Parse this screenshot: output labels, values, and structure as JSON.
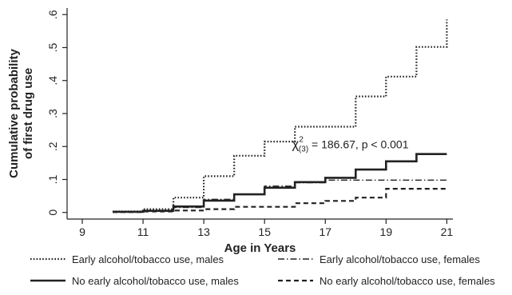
{
  "chart_data": {
    "type": "line",
    "step": true,
    "xlabel": "Age in Years",
    "ylabel": [
      "Cumulative probability",
      "of first drug use"
    ],
    "xlim": [
      8.5,
      21.2
    ],
    "ylim": [
      -0.02,
      0.62
    ],
    "xticks": [
      9,
      11,
      13,
      15,
      17,
      19,
      21
    ],
    "xtick_labels": [
      "9",
      "11",
      "13",
      "15",
      "17",
      "19",
      "21"
    ],
    "yticks": [
      0,
      0.1,
      0.2,
      0.3,
      0.4,
      0.5,
      0.6
    ],
    "ytick_labels": [
      "0",
      ".1",
      ".2",
      ".3",
      ".4",
      ".5",
      ".6"
    ],
    "grid": false,
    "legend_position": "bottom",
    "annotation": {
      "chi": "χ",
      "superscript": "2",
      "subscript": "(3)",
      "rest": " = 186.67, p < 0.001",
      "x": 15.9,
      "y": 0.195
    },
    "series": [
      {
        "name": "Early alcohol/tobacco use, males",
        "style": "dotted",
        "color": "#222222",
        "x": [
          10,
          11,
          12,
          13,
          14,
          15,
          16,
          17,
          18,
          19,
          20,
          21
        ],
        "y": [
          0.003,
          0.01,
          0.045,
          0.11,
          0.172,
          0.215,
          0.26,
          0.26,
          0.352,
          0.412,
          0.502,
          0.585
        ]
      },
      {
        "name": "Early alcohol/tobacco use, females",
        "style": "dashdot",
        "color": "#222222",
        "x": [
          10,
          11,
          12,
          13,
          14,
          15,
          16,
          17,
          18,
          19,
          20,
          21
        ],
        "y": [
          0.002,
          0.005,
          0.015,
          0.04,
          0.055,
          0.08,
          0.09,
          0.098,
          0.098,
          0.098,
          0.098,
          0.098
        ]
      },
      {
        "name": "No early alcohol/tobacco use, males",
        "style": "solid",
        "color": "#222222",
        "x": [
          10,
          11,
          12,
          13,
          14,
          15,
          16,
          17,
          18,
          19,
          20,
          21
        ],
        "y": [
          0.002,
          0.005,
          0.018,
          0.036,
          0.055,
          0.075,
          0.092,
          0.105,
          0.13,
          0.155,
          0.177,
          0.177
        ]
      },
      {
        "name": "No early alcohol/tobacco use, females",
        "style": "dashed",
        "color": "#222222",
        "x": [
          10,
          11,
          12,
          13,
          14,
          15,
          16,
          17,
          18,
          19,
          20,
          21
        ],
        "y": [
          0.001,
          0.003,
          0.006,
          0.01,
          0.017,
          0.017,
          0.028,
          0.035,
          0.045,
          0.072,
          0.072,
          0.072
        ]
      }
    ]
  }
}
